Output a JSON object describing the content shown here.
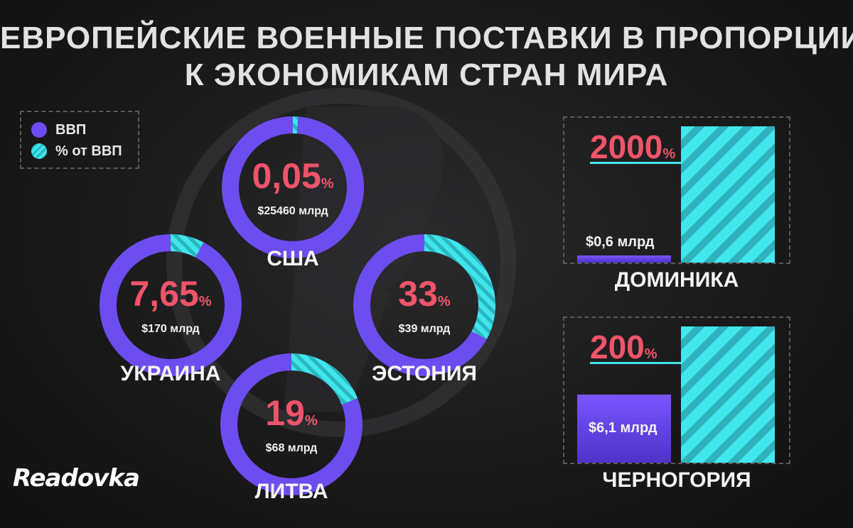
{
  "title": {
    "line1": "ЕВРОПЕЙСКИЕ ВОЕННЫЕ ПОСТАВКИ В ПРОПОРЦИИ",
    "line2": "К ЭКОНОМИКАМ СТРАН МИРА"
  },
  "legend": {
    "gdp_label": "ВВП",
    "pct_label": "% от ВВП"
  },
  "brand": {
    "logo_text": "Readovka"
  },
  "colors": {
    "gdp": "#6d4cf0",
    "pct": "#3fe6ec",
    "value_text": "#f0546a"
  },
  "chart_data": [
    {
      "type": "pie",
      "style": "donut",
      "legend": [
        "ВВП",
        "% от ВВП"
      ],
      "legend_position": "top-left",
      "slices": [
        {
          "country": "США",
          "pct_of_gdp": 0.05,
          "pct_text": "0,05",
          "pct_sign": "%",
          "gdp_text": "$25460 млрд",
          "gdp_billion": 25460
        },
        {
          "country": "УКРАИНА",
          "pct_of_gdp": 7.65,
          "pct_text": "7,65",
          "pct_sign": "%",
          "gdp_text": "$170 млрд",
          "gdp_billion": 170
        },
        {
          "country": "ЭСТОНИЯ",
          "pct_of_gdp": 33,
          "pct_text": "33",
          "pct_sign": "%",
          "gdp_text": "$39 млрд",
          "gdp_billion": 39
        },
        {
          "country": "ЛИТВА",
          "pct_of_gdp": 19,
          "pct_text": "19",
          "pct_sign": "%",
          "gdp_text": "$68 млрд",
          "gdp_billion": 68
        }
      ]
    },
    {
      "type": "bar",
      "bars": [
        {
          "country": "ДОМИНИКА",
          "pct_of_gdp": 2000,
          "pct_text": "2000",
          "pct_sign": "%",
          "gdp_text": "$0,6 млрд",
          "gdp_billion": 0.6
        },
        {
          "country": "ЧЕРНОГОРИЯ",
          "pct_of_gdp": 200,
          "pct_text": "200",
          "pct_sign": "%",
          "gdp_text": "$6,1 млрд",
          "gdp_billion": 6.1
        }
      ]
    }
  ]
}
